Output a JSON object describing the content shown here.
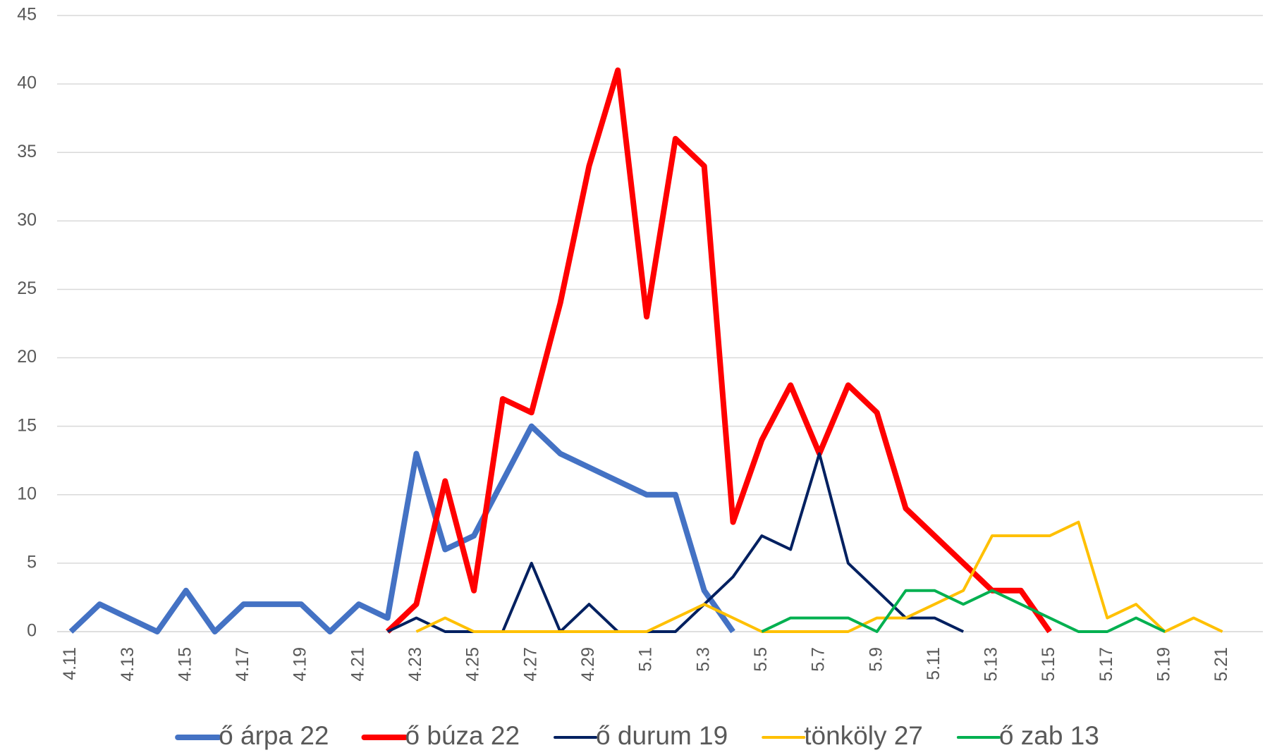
{
  "chart_data": {
    "type": "line",
    "categories": [
      "4.11",
      null,
      "4.13",
      null,
      "4.15",
      null,
      "4.17",
      null,
      "4.19",
      null,
      "4.21",
      null,
      "4.23",
      null,
      "4.25",
      null,
      "4.27",
      null,
      "4.29",
      null,
      "5.1",
      null,
      "5.3",
      null,
      "5.5",
      null,
      "5.7",
      null,
      "5.9",
      null,
      "5.11",
      null,
      "5.13",
      null,
      "5.15",
      null,
      "5.17",
      null,
      "5.19",
      null,
      "5.21"
    ],
    "series": [
      {
        "name": "ő árpa 22",
        "color": "#4472c4",
        "width": 8,
        "values": [
          0,
          2,
          1,
          0,
          3,
          0,
          2,
          2,
          2,
          0,
          2,
          1,
          13,
          6,
          7,
          11,
          15,
          13,
          12,
          11,
          10,
          10,
          3,
          0,
          null,
          null,
          null,
          null,
          null,
          null,
          null,
          null,
          null,
          null,
          null,
          null,
          null,
          null,
          null,
          null,
          null
        ]
      },
      {
        "name": "ő búza 22",
        "color": "#ff0000",
        "width": 8,
        "values": [
          null,
          null,
          null,
          null,
          null,
          null,
          null,
          null,
          null,
          null,
          null,
          0,
          2,
          11,
          3,
          17,
          16,
          24,
          34,
          41,
          23,
          36,
          34,
          8,
          14,
          18,
          13,
          18,
          16,
          9,
          7,
          5,
          3,
          3,
          0,
          null,
          null,
          null,
          null,
          null,
          null
        ]
      },
      {
        "name": "ő durum 19",
        "color": "#002060",
        "width": 4,
        "values": [
          null,
          null,
          null,
          null,
          null,
          null,
          null,
          null,
          null,
          null,
          null,
          0,
          1,
          0,
          0,
          0,
          5,
          0,
          2,
          0,
          0,
          0,
          2,
          4,
          7,
          6,
          13,
          5,
          3,
          1,
          1,
          0,
          null,
          null,
          null,
          null,
          null,
          null,
          null,
          null,
          null
        ]
      },
      {
        "name": "tönköly 27",
        "color": "#ffc000",
        "width": 4,
        "values": [
          null,
          null,
          null,
          null,
          null,
          null,
          null,
          null,
          null,
          null,
          null,
          null,
          0,
          1,
          0,
          0,
          0,
          0,
          0,
          0,
          0,
          1,
          2,
          1,
          0,
          0,
          0,
          0,
          1,
          1,
          2,
          3,
          7,
          7,
          7,
          8,
          1,
          2,
          0,
          1,
          0
        ]
      },
      {
        "name": "ő zab 13",
        "color": "#00b050",
        "width": 4,
        "values": [
          null,
          null,
          null,
          null,
          null,
          null,
          null,
          null,
          null,
          null,
          null,
          null,
          null,
          null,
          null,
          null,
          null,
          null,
          null,
          null,
          null,
          null,
          null,
          null,
          0,
          1,
          1,
          1,
          0,
          3,
          3,
          2,
          3,
          2,
          1,
          0,
          0,
          1,
          0,
          null,
          null
        ]
      }
    ],
    "ylim": [
      0,
      45
    ],
    "yticks": [
      0,
      5,
      10,
      15,
      20,
      25,
      30,
      35,
      40,
      45
    ],
    "grid": true,
    "legend": "bottom"
  }
}
